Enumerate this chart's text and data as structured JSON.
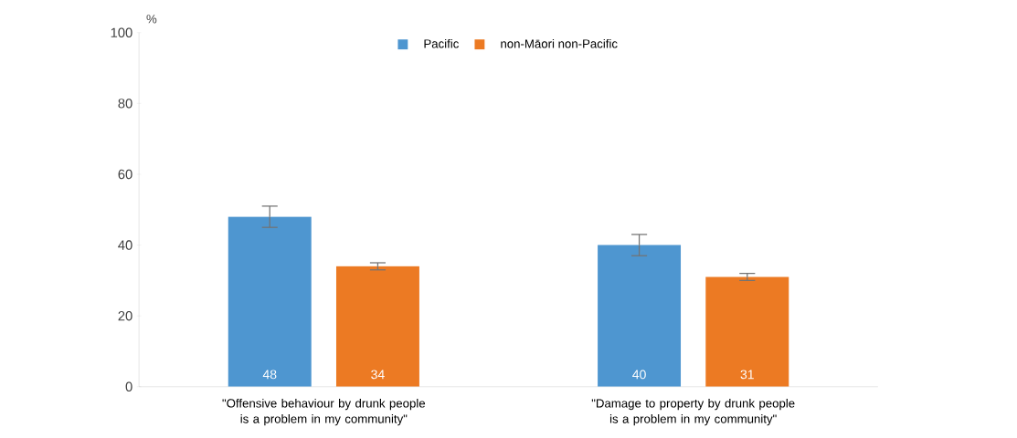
{
  "chart_data": {
    "type": "bar",
    "ylabel": "%",
    "categories": [
      "\"Offensive behaviour by drunk people is a problem in my community\"",
      "\"Damage to property by drunk people is a problem in my community\""
    ],
    "series": [
      {
        "name": "Pacific",
        "color": "#4e96d0",
        "values": [
          48,
          40
        ],
        "errors": [
          3,
          3
        ]
      },
      {
        "name": "non-Māori non-Pacific",
        "color": "#ec7a23",
        "values": [
          34,
          31
        ],
        "errors": [
          1,
          1
        ]
      }
    ],
    "ylim": [
      0,
      100
    ],
    "yticks": [
      0,
      20,
      40,
      60,
      80,
      100
    ],
    "data_labels": true,
    "legend": "top",
    "grid": false
  }
}
